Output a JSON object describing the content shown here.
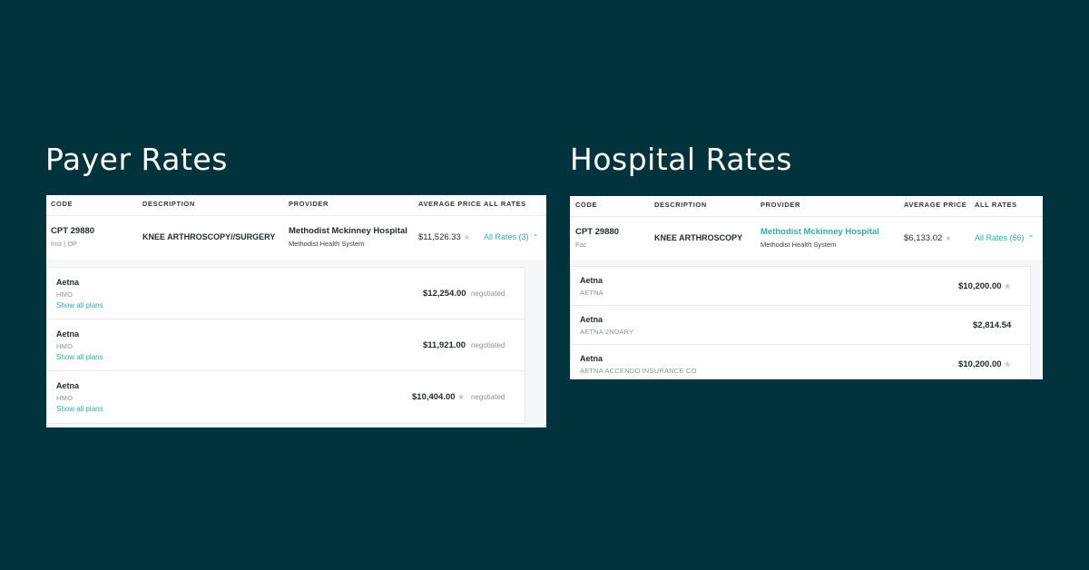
{
  "payer": {
    "title": "Payer Rates",
    "headers": {
      "code": "CODE",
      "description": "DESCRIPTION",
      "provider": "PROVIDER",
      "average_price": "AVERAGE PRICE",
      "all_rates": "ALL RATES"
    },
    "row": {
      "code": "CPT 29880",
      "code_sub": "Inst | OP",
      "description": "KNEE ARTHROSCOPY//SURGERY",
      "provider": "Methodist Mckinney Hospital",
      "provider_sub": "Methodist Health System",
      "average_price": "$11,526.33",
      "all_rates": "All Rates (3)"
    },
    "rates": [
      {
        "payer": "Aetna",
        "plan": "HMO",
        "link": "Show all plans",
        "amount": "$12,254.00",
        "status": "negotiated",
        "star": false
      },
      {
        "payer": "Aetna",
        "plan": "HMO",
        "link": "Show all plans",
        "amount": "$11,921.00",
        "status": "negotiated",
        "star": false
      },
      {
        "payer": "Aetna",
        "plan": "HMO",
        "link": "Show all plans",
        "amount": "$10,404.00",
        "status": "negotiated",
        "star": true
      }
    ]
  },
  "hospital": {
    "title": "Hospital Rates",
    "headers": {
      "code": "CODE",
      "description": "DESCRIPTION",
      "provider": "PROVIDER",
      "average_price": "AVERAGE PRICE",
      "all_rates": "ALL RATES"
    },
    "row": {
      "code": "CPT 29880",
      "code_sub": "Fac",
      "description": "KNEE ARTHROSCOPY",
      "provider": "Methodist Mckinney Hospital",
      "provider_sub": "Methodist Health System",
      "average_price": "$6,133.02",
      "all_rates": "All Rates (66)"
    },
    "rates": [
      {
        "payer": "Aetna",
        "plan": "AETNA",
        "amount": "$10,200.00",
        "star": true
      },
      {
        "payer": "Aetna",
        "plan": "AETNA 2NDARY",
        "amount": "$2,814.54",
        "star": false
      },
      {
        "payer": "Aetna",
        "plan": "AETNA ACCENDO INSURANCE CO",
        "amount": "$10,200.00",
        "star": true
      }
    ]
  },
  "icons": {
    "star": "star-icon",
    "chevron": "chevron-up-icon"
  },
  "colors": {
    "background": "#00333b",
    "accent": "#2bb3a3"
  }
}
